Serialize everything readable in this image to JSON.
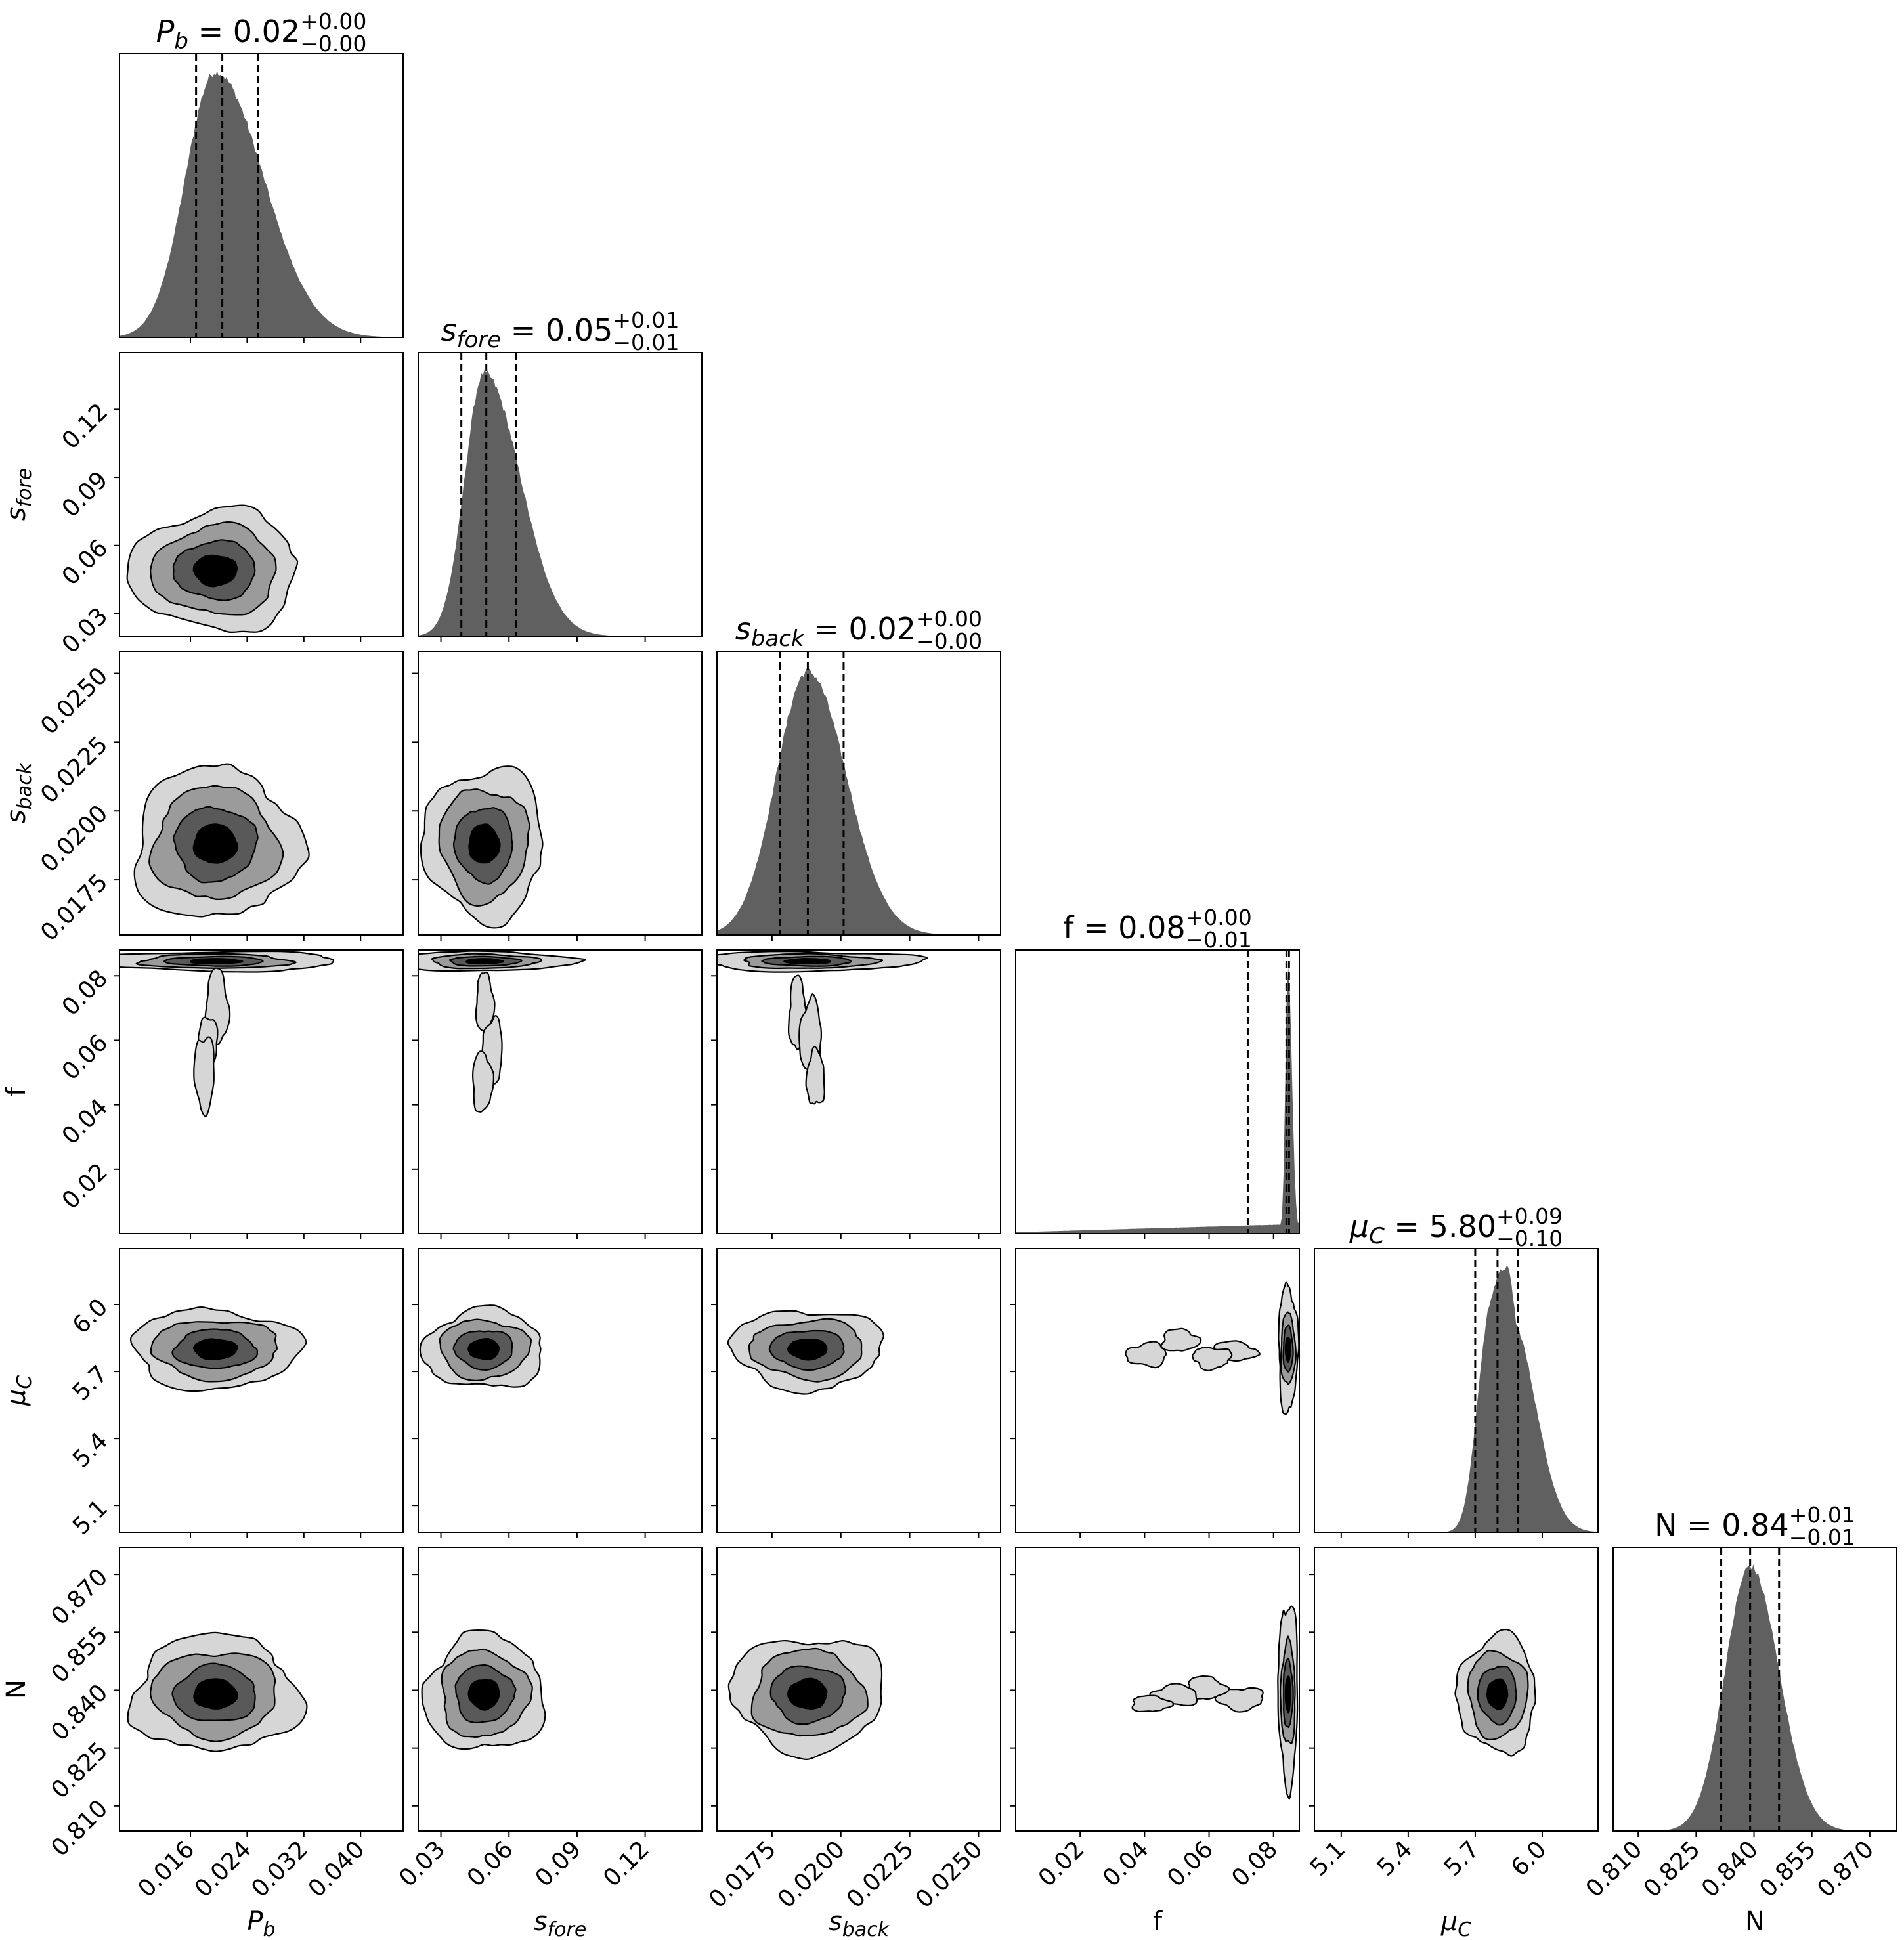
{
  "chart_data": {
    "type": "corner",
    "parameters": [
      {
        "key": "Pb",
        "axis_label": {
          "base": "P",
          "sub": "b",
          "italic": true
        },
        "title": {
          "value": "0.02",
          "plus": "+0.00",
          "minus": "−0.00"
        },
        "range": [
          0.006,
          0.046
        ],
        "ticks": [
          0.016,
          0.024,
          0.032,
          0.04
        ],
        "tick_labels": [
          "0.016",
          "0.024",
          "0.032",
          "0.040"
        ],
        "quantiles": [
          0.0168,
          0.0205,
          0.0255
        ],
        "mode": 0.0195,
        "sigma": 0.0042,
        "skew": 0.0068
      },
      {
        "key": "sfore",
        "axis_label": {
          "base": "s",
          "sub": "fore",
          "italic": true
        },
        "title": {
          "value": "0.05",
          "plus": "+0.01",
          "minus": "−0.01"
        },
        "range": [
          0.02,
          0.145
        ],
        "ticks": [
          0.03,
          0.06,
          0.09,
          0.12
        ],
        "tick_labels": [
          "0.03",
          "0.06",
          "0.09",
          "0.12"
        ],
        "quantiles": [
          0.039,
          0.05,
          0.063
        ],
        "mode": 0.049,
        "sigma": 0.0085,
        "skew": 0.016
      },
      {
        "key": "sback",
        "axis_label": {
          "base": "s",
          "sub": "back",
          "italic": true
        },
        "title": {
          "value": "0.02",
          "plus": "+0.00",
          "minus": "−0.00"
        },
        "range": [
          0.0155,
          0.0258
        ],
        "ticks": [
          0.0175,
          0.02,
          0.0225,
          0.025
        ],
        "tick_labels": [
          "0.0175",
          "0.0200",
          "0.0225",
          "0.0250"
        ],
        "quantiles": [
          0.0178,
          0.0188,
          0.0201
        ],
        "mode": 0.0188,
        "sigma": 0.00115,
        "skew": 0.0014
      },
      {
        "key": "f",
        "axis_label": {
          "base": "f",
          "sub": "",
          "italic": false
        },
        "title": {
          "value": "0.08",
          "plus": "+0.00",
          "minus": "−0.01"
        },
        "range": [
          0.0,
          0.088
        ],
        "ticks": [
          0.02,
          0.04,
          0.06,
          0.08
        ],
        "tick_labels": [
          "0.02",
          "0.04",
          "0.06",
          "0.08"
        ],
        "quantiles": [
          0.072,
          0.084,
          0.0848
        ],
        "mode": 0.0845,
        "sigma": 0.0008,
        "skew": 0.0012
      },
      {
        "key": "muC",
        "axis_label": {
          "base": "μ",
          "sub": "C",
          "italic": true
        },
        "title": {
          "value": "5.80",
          "plus": "+0.09",
          "minus": "−0.10"
        },
        "range": [
          4.98,
          6.25
        ],
        "ticks": [
          5.1,
          5.4,
          5.7,
          6.0
        ],
        "tick_labels": [
          "5.1",
          "5.4",
          "5.7",
          "6.0"
        ],
        "quantiles": [
          5.7,
          5.8,
          5.89
        ],
        "mode": 5.8,
        "sigma": 0.075,
        "skew": 0.09
      },
      {
        "key": "N",
        "axis_label": {
          "base": "N",
          "sub": "",
          "italic": false
        },
        "title": {
          "value": "0.84",
          "plus": "+0.01",
          "minus": "−0.01"
        },
        "range": [
          0.8035,
          0.877
        ],
        "ticks": [
          0.81,
          0.825,
          0.84,
          0.855,
          0.87
        ],
        "tick_labels": [
          "0.810",
          "0.825",
          "0.840",
          "0.855",
          "0.870"
        ],
        "quantiles": [
          0.8315,
          0.839,
          0.8465
        ],
        "mode": 0.839,
        "sigma": 0.0065,
        "skew": 0.0075
      }
    ],
    "contour_levels_sigma": [
      0.55,
      1.05,
      1.6,
      2.15
    ],
    "contour_fills": [
      "#000000",
      "#595959",
      "#9b9b9b",
      "#d6d6d6"
    ],
    "hist_fill": "#606060",
    "quantile_line_style": "dashed"
  }
}
